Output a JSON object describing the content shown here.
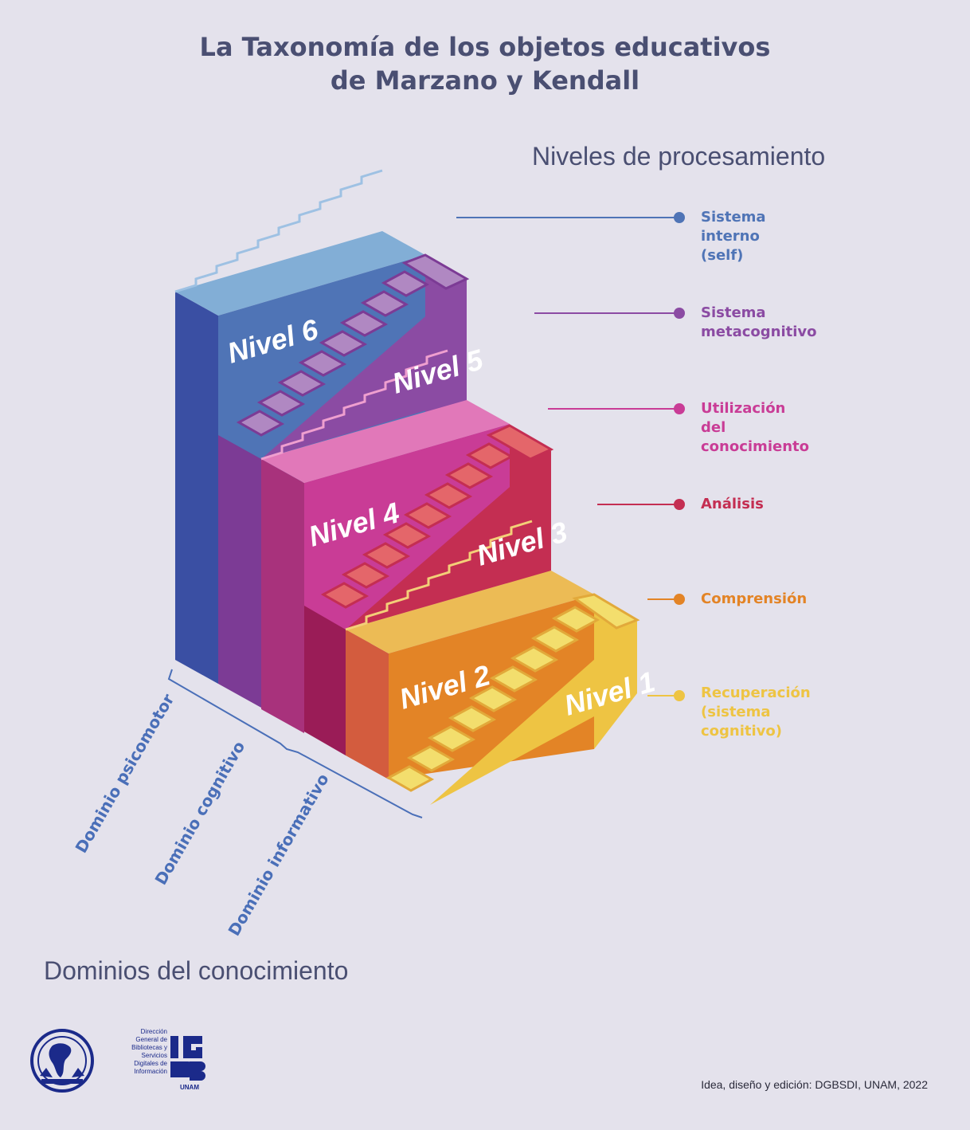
{
  "title": {
    "line1": "La Taxonomía de los objetos educativos",
    "line2": "de Marzano y Kendall"
  },
  "niveles_heading": "Niveles de procesamiento",
  "dominios_heading": "Dominios del conocimiento",
  "levels": [
    {
      "label_lines": [
        "Sistema interno (self)"
      ],
      "color": "#4f74b6"
    },
    {
      "label_lines": [
        "Sistema metacognitivo"
      ],
      "color": "#8b4ba3"
    },
    {
      "label_lines": [
        "Utilización del conocimiento"
      ],
      "color": "#c93c96"
    },
    {
      "label_lines": [
        "Análisis"
      ],
      "color": "#c42e52"
    },
    {
      "label_lines": [
        "Comprensión"
      ],
      "color": "#e38426"
    },
    {
      "label_lines": [
        "Recuperación",
        "(sistema cognitivo)"
      ],
      "color": "#eec443"
    }
  ],
  "niveles": [
    "Nivel 6",
    "Nivel 5",
    "Nivel 4",
    "Nivel 3",
    "Nivel 2",
    "Nivel 1"
  ],
  "domains": [
    "Dominio psicomotor",
    "Dominio cognitivo",
    "Dominio informativo"
  ],
  "credit": "Idea, diseño y edición: DGBSDI, UNAM, 2022",
  "logos": {
    "dgbsdi_lines": [
      "Dirección",
      "General de",
      "Bibliotecas y",
      "Servicios",
      "Digitales de",
      "Información"
    ],
    "unam_caption": "UNAM"
  }
}
